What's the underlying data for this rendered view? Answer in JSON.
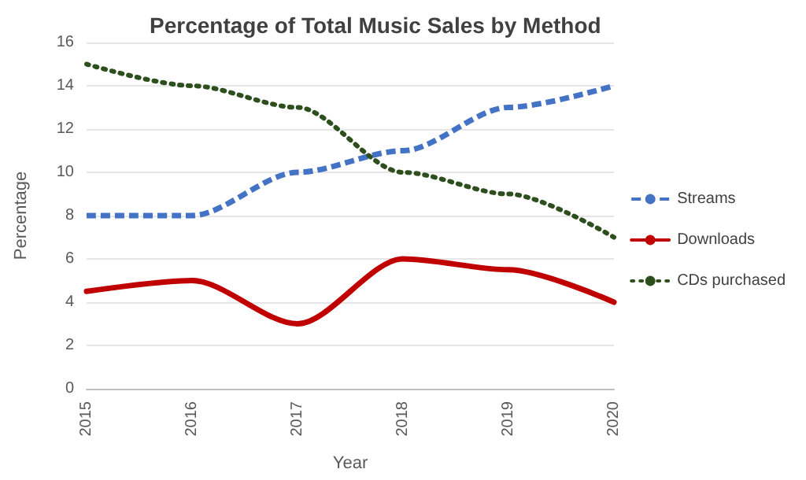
{
  "chart_data": {
    "type": "line",
    "title": "Percentage of Total Music Sales by Method",
    "xlabel": "Year",
    "ylabel": "Percentage",
    "categories": [
      "2015",
      "2016",
      "2017",
      "2018",
      "2019",
      "2020"
    ],
    "series": [
      {
        "name": "Streams",
        "color": "#4472c4",
        "line_style": "dashed",
        "values": [
          8,
          8,
          10,
          11,
          13,
          14
        ]
      },
      {
        "name": "Downloads",
        "color": "#c00000",
        "line_style": "solid",
        "values": [
          4.5,
          5,
          3,
          6,
          5.5,
          4
        ]
      },
      {
        "name": "CDs purchased",
        "color": "#2d4f1e",
        "line_style": "dotted",
        "values": [
          15,
          14,
          13,
          10,
          9,
          7
        ]
      }
    ],
    "ylim": [
      0,
      16
    ],
    "yticks": [
      0,
      2,
      4,
      6,
      8,
      10,
      12,
      14,
      16
    ],
    "grid": "y",
    "legend": "right",
    "marker": "none"
  }
}
